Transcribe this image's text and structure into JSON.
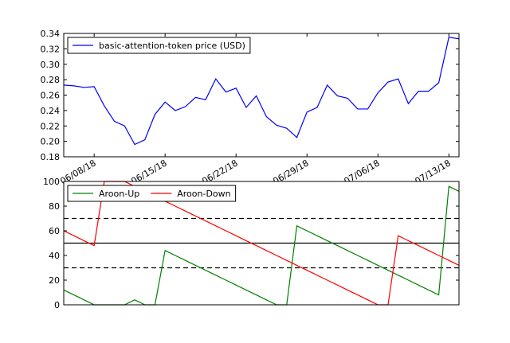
{
  "chart_data": [
    {
      "type": "line",
      "x": [
        "06/05/18",
        "06/06/18",
        "06/07/18",
        "06/08/18",
        "06/09/18",
        "06/10/18",
        "06/11/18",
        "06/12/18",
        "06/13/18",
        "06/14/18",
        "06/15/18",
        "06/16/18",
        "06/17/18",
        "06/18/18",
        "06/19/18",
        "06/20/18",
        "06/21/18",
        "06/22/18",
        "06/23/18",
        "06/24/18",
        "06/25/18",
        "06/26/18",
        "06/27/18",
        "06/28/18",
        "06/29/18",
        "06/30/18",
        "07/01/18",
        "07/02/18",
        "07/03/18",
        "07/04/18",
        "07/05/18",
        "07/06/18",
        "07/07/18",
        "07/08/18",
        "07/09/18",
        "07/10/18",
        "07/11/18",
        "07/12/18",
        "07/13/18",
        "07/14/18"
      ],
      "series": [
        {
          "name": "basic-attention-token price (USD)",
          "color": "#0000ff",
          "values": [
            0.273,
            0.272,
            0.27,
            0.271,
            0.246,
            0.226,
            0.22,
            0.196,
            0.202,
            0.235,
            0.251,
            0.24,
            0.245,
            0.257,
            0.254,
            0.281,
            0.264,
            0.269,
            0.244,
            0.259,
            0.232,
            0.221,
            0.217,
            0.205,
            0.238,
            0.244,
            0.273,
            0.259,
            0.256,
            0.242,
            0.242,
            0.263,
            0.277,
            0.281,
            0.249,
            0.265,
            0.265,
            0.276,
            0.335,
            0.333
          ]
        }
      ],
      "xlim": [
        "06/05/18",
        "07/14/18"
      ],
      "xticks": [
        "06/08/18",
        "06/15/18",
        "06/22/18",
        "06/29/18",
        "07/06/18",
        "07/13/18"
      ],
      "ylim": [
        0.18,
        0.34
      ],
      "yticks": [
        0.18,
        {
          "value": 0.2,
          "label": "0.20"
        },
        0.22,
        0.24,
        0.26,
        0.28,
        {
          "value": 0.3,
          "label": "0.30"
        },
        0.32,
        0.34
      ],
      "legend": "upper left"
    },
    {
      "type": "line",
      "x": [
        "06/05/18",
        "06/06/18",
        "06/07/18",
        "06/08/18",
        "06/09/18",
        "06/10/18",
        "06/11/18",
        "06/12/18",
        "06/13/18",
        "06/14/18",
        "06/15/18",
        "06/16/18",
        "06/17/18",
        "06/18/18",
        "06/19/18",
        "06/20/18",
        "06/21/18",
        "06/22/18",
        "06/23/18",
        "06/24/18",
        "06/25/18",
        "06/26/18",
        "06/27/18",
        "06/28/18",
        "06/29/18",
        "06/30/18",
        "07/01/18",
        "07/02/18",
        "07/03/18",
        "07/04/18",
        "07/05/18",
        "07/06/18",
        "07/07/18",
        "07/08/18",
        "07/09/18",
        "07/10/18",
        "07/11/18",
        "07/12/18",
        "07/13/18",
        "07/14/18"
      ],
      "series": [
        {
          "name": "Aroon-Up",
          "color": "#008000",
          "values": [
            12,
            8,
            4,
            0,
            0,
            0,
            0,
            4,
            0,
            0,
            44,
            40,
            36,
            32,
            28,
            24,
            20,
            16,
            12,
            8,
            4,
            0,
            0,
            64,
            60,
            56,
            52,
            48,
            44,
            40,
            36,
            32,
            28,
            24,
            20,
            16,
            12,
            8,
            96,
            92
          ]
        },
        {
          "name": "Aroon-Down",
          "color": "#ff0000",
          "values": [
            60,
            56,
            52,
            48,
            100,
            100,
            100,
            96,
            92,
            88,
            84,
            80,
            76,
            72,
            68,
            64,
            60,
            56,
            52,
            48,
            44,
            40,
            36,
            32,
            28,
            24,
            20,
            16,
            12,
            8,
            4,
            0,
            0,
            56,
            52,
            48,
            44,
            40,
            36,
            32
          ]
        }
      ],
      "xlim": [
        "06/05/18",
        "07/14/18"
      ],
      "ylim": [
        0,
        100
      ],
      "yticks": [
        0,
        20,
        40,
        60,
        80,
        100
      ],
      "hlines": [
        30,
        50,
        70
      ],
      "hline_styles": [
        "dashed",
        "solid",
        "dashed"
      ],
      "legend": "upper left"
    }
  ]
}
